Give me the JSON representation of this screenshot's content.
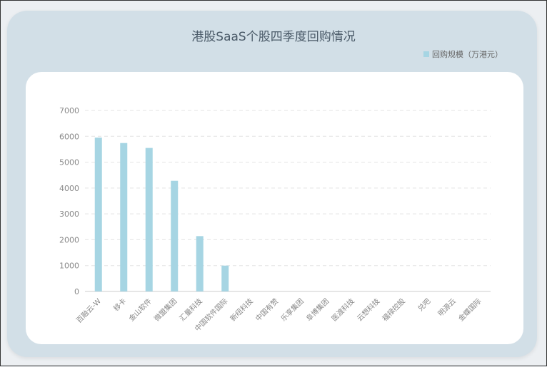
{
  "chart_data": {
    "type": "bar",
    "title": "港股SaaS个股四季度回购情况",
    "categories": [
      "百融云-W",
      "移卡",
      "金山软件",
      "微盟集团",
      "汇量科技",
      "中国软件国际",
      "新纽科技",
      "中国有赞",
      "乐享集团",
      "阜博集团",
      "医渡科技",
      "云想科技",
      "福禄控股",
      "兑吧",
      "明源云",
      "金蝶国际"
    ],
    "series": [
      {
        "name": "回购规模（万港元）",
        "values": [
          5950,
          5740,
          5550,
          4280,
          2140,
          1000,
          0,
          0,
          0,
          0,
          0,
          0,
          0,
          0,
          0,
          0
        ]
      }
    ],
    "ylim": [
      0,
      7000
    ],
    "yticks": [
      0,
      1000,
      2000,
      3000,
      4000,
      5000,
      6000,
      7000
    ],
    "grid": true,
    "legend": "top-right",
    "color": "#a6d5e3"
  }
}
